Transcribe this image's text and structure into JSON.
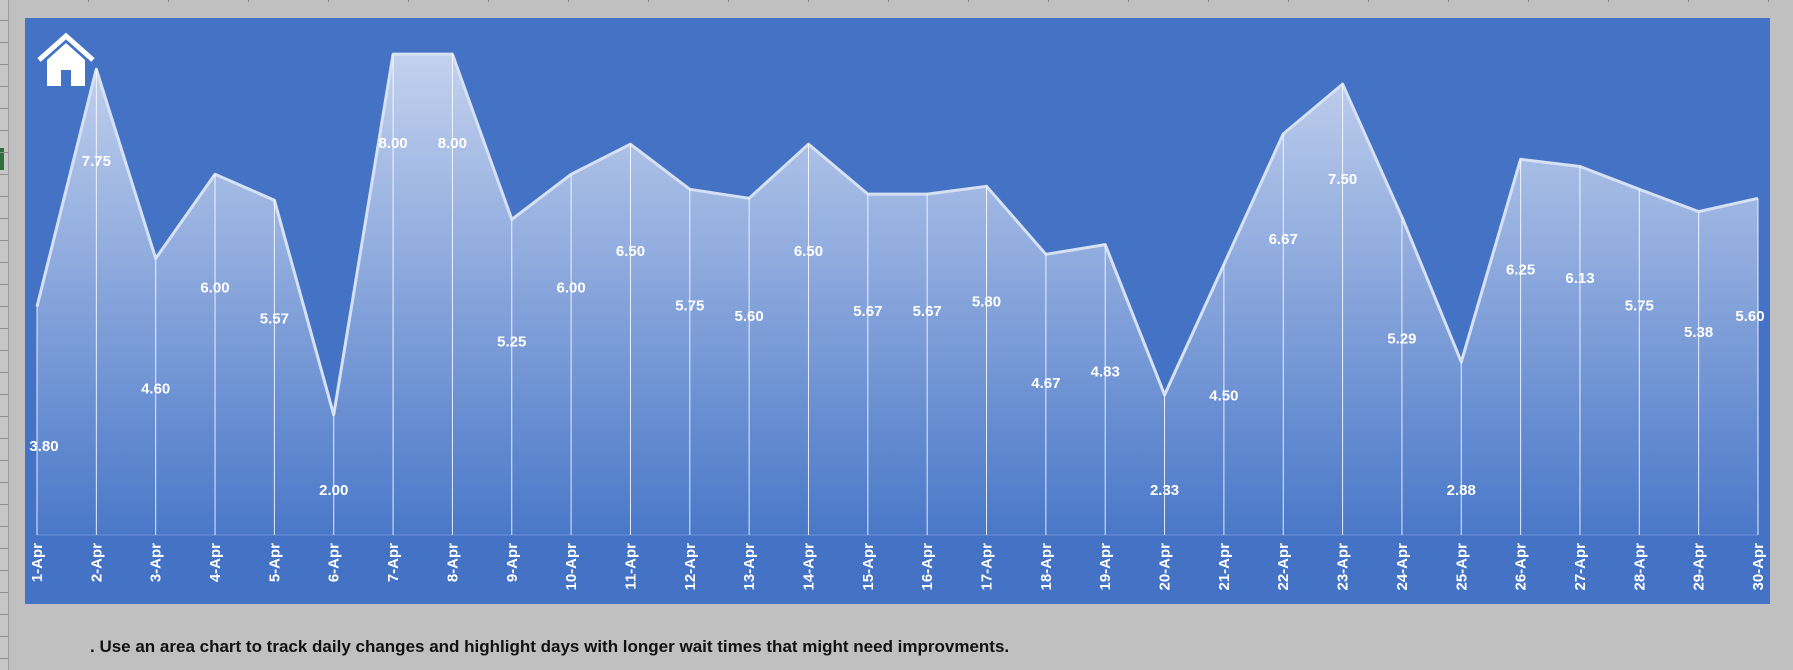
{
  "note": ". Use an area chart to track daily changes and highlight days with longer wait times that might need improvments.",
  "home_icon": "home-icon",
  "colors": {
    "panel": "#4472c4",
    "area_top": "#c3d1ee",
    "area_bottom": "#4a78c8",
    "area_line": "#d7e1f4",
    "label": "#ffffff"
  },
  "chart_data": {
    "type": "area",
    "title": "",
    "xlabel": "",
    "ylabel": "",
    "grid": false,
    "legend": "none",
    "ylim": [
      0,
      8.6
    ],
    "categories": [
      "1-Apr",
      "2-Apr",
      "3-Apr",
      "4-Apr",
      "5-Apr",
      "6-Apr",
      "7-Apr",
      "8-Apr",
      "9-Apr",
      "10-Apr",
      "11-Apr",
      "12-Apr",
      "13-Apr",
      "14-Apr",
      "15-Apr",
      "16-Apr",
      "17-Apr",
      "18-Apr",
      "19-Apr",
      "20-Apr",
      "21-Apr",
      "22-Apr",
      "23-Apr",
      "24-Apr",
      "25-Apr",
      "26-Apr",
      "27-Apr",
      "28-Apr",
      "29-Apr",
      "30-Apr"
    ],
    "values": [
      3.8,
      7.75,
      4.6,
      6.0,
      5.57,
      2.0,
      8.0,
      8.0,
      5.25,
      6.0,
      6.5,
      5.75,
      5.6,
      6.5,
      5.67,
      5.67,
      5.8,
      4.67,
      4.83,
      2.33,
      4.5,
      6.67,
      7.5,
      5.29,
      2.88,
      6.25,
      6.13,
      5.75,
      5.38,
      5.6
    ],
    "data_labels": [
      "3.80",
      "7.75",
      "4.60",
      "6.00",
      "5.57",
      "2.00",
      "8.00",
      "8.00",
      "5.25",
      "6.00",
      "6.50",
      "5.75",
      "5.60",
      "6.50",
      "5.67",
      "5.67",
      "5.80",
      "4.67",
      "4.83",
      "2.33",
      "4.50",
      "6.67",
      "7.50",
      "5.29",
      "2.88",
      "6.25",
      "6.13",
      "5.75",
      "5.38",
      "5.60"
    ]
  }
}
